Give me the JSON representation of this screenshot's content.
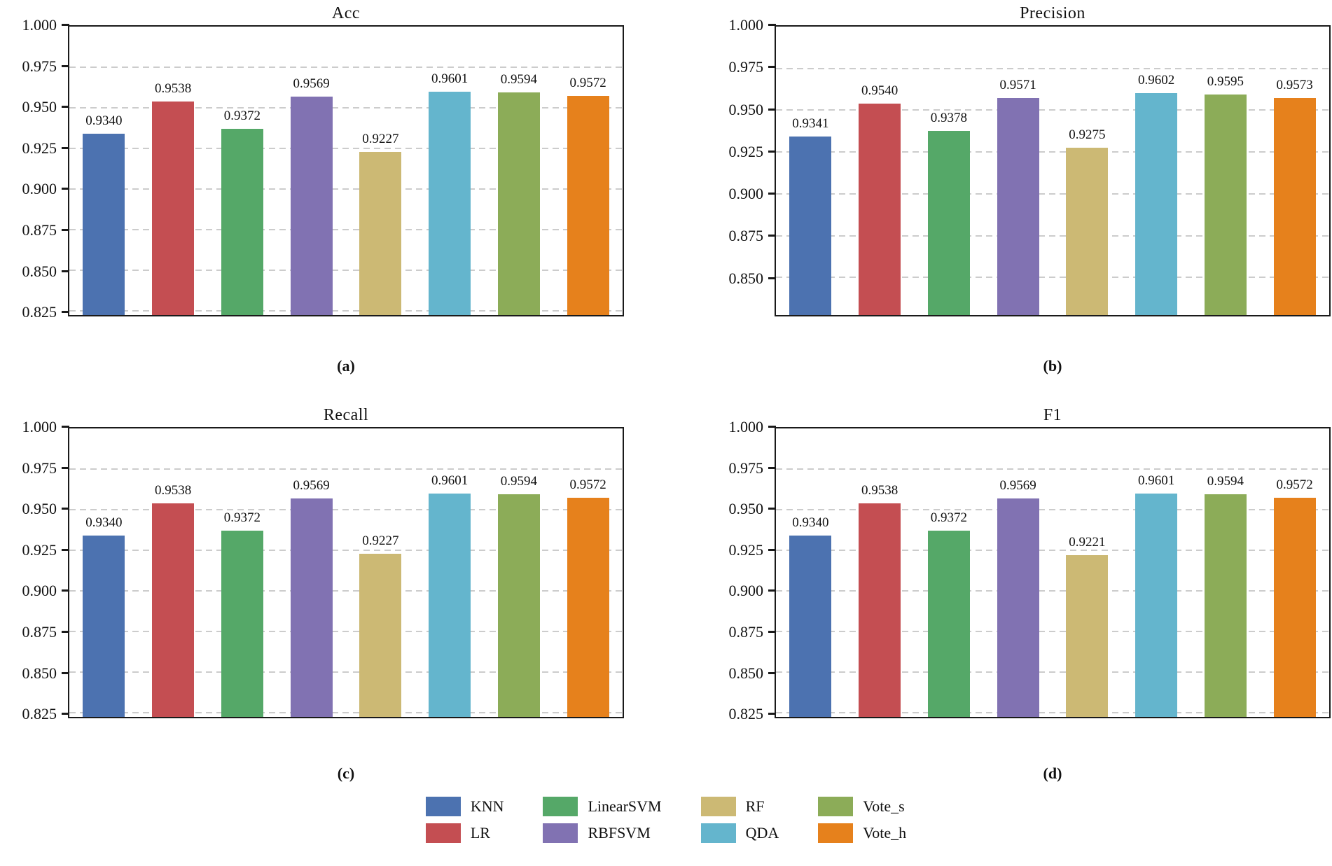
{
  "figure": {
    "background": "#ffffff",
    "spine_color": "#1a1a1a",
    "grid_color": "#cccccc",
    "text_color": "#111111"
  },
  "legend": {
    "position": "figure-bottom-center",
    "items": [
      {
        "label": "KNN",
        "color": "#4C72B0"
      },
      {
        "label": "LR",
        "color": "#C44E52"
      },
      {
        "label": "LinearSVM",
        "color": "#55A868"
      },
      {
        "label": "RBFSVM",
        "color": "#8172B2"
      },
      {
        "label": "RF",
        "color": "#CCB974"
      },
      {
        "label": "QDA",
        "color": "#64B5CD"
      },
      {
        "label": "Vote_s",
        "color": "#8CAC58"
      },
      {
        "label": "Vote_h",
        "color": "#E6811C"
      }
    ]
  },
  "chart_data": [
    {
      "type": "bar",
      "title": "Acc",
      "caption": "(a)",
      "categories": [
        "KNN",
        "LR",
        "LinearSVM",
        "RBFSVM",
        "RF",
        "QDA",
        "Vote_s",
        "Vote_h"
      ],
      "values": [
        0.934,
        0.9538,
        0.9372,
        0.9569,
        0.9227,
        0.9601,
        0.9594,
        0.9572
      ],
      "value_labels": [
        "0.9340",
        "0.9538",
        "0.9372",
        "0.9569",
        "0.9227",
        "0.9601",
        "0.9594",
        "0.9572"
      ],
      "ylim": [
        0.8225,
        1.0
      ],
      "yticks": [
        "0.825",
        "0.850",
        "0.875",
        "0.900",
        "0.925",
        "0.950",
        "0.975",
        "1.000"
      ],
      "grid": "horizontal-dashed",
      "xlabel": "",
      "ylabel": ""
    },
    {
      "type": "bar",
      "title": "Precision",
      "caption": "(b)",
      "categories": [
        "KNN",
        "LR",
        "LinearSVM",
        "RBFSVM",
        "RF",
        "QDA",
        "Vote_s",
        "Vote_h"
      ],
      "values": [
        0.9341,
        0.954,
        0.9378,
        0.9571,
        0.9275,
        0.9602,
        0.9595,
        0.9573
      ],
      "value_labels": [
        "0.9341",
        "0.9540",
        "0.9378",
        "0.9571",
        "0.9275",
        "0.9602",
        "0.9595",
        "0.9573"
      ],
      "ylim": [
        0.8275,
        1.0
      ],
      "yticks": [
        "0.850",
        "0.875",
        "0.900",
        "0.925",
        "0.950",
        "0.975",
        "1.000"
      ],
      "grid": "horizontal-dashed",
      "xlabel": "",
      "ylabel": ""
    },
    {
      "type": "bar",
      "title": "Recall",
      "caption": "(c)",
      "categories": [
        "KNN",
        "LR",
        "LinearSVM",
        "RBFSVM",
        "RF",
        "QDA",
        "Vote_s",
        "Vote_h"
      ],
      "values": [
        0.934,
        0.9538,
        0.9372,
        0.9569,
        0.9227,
        0.9601,
        0.9594,
        0.9572
      ],
      "value_labels": [
        "0.9340",
        "0.9538",
        "0.9372",
        "0.9569",
        "0.9227",
        "0.9601",
        "0.9594",
        "0.9572"
      ],
      "ylim": [
        0.8225,
        1.0
      ],
      "yticks": [
        "0.825",
        "0.850",
        "0.875",
        "0.900",
        "0.925",
        "0.950",
        "0.975",
        "1.000"
      ],
      "grid": "horizontal-dashed",
      "xlabel": "",
      "ylabel": ""
    },
    {
      "type": "bar",
      "title": "F1",
      "caption": "(d)",
      "categories": [
        "KNN",
        "LR",
        "LinearSVM",
        "RBFSVM",
        "RF",
        "QDA",
        "Vote_s",
        "Vote_h"
      ],
      "values": [
        0.934,
        0.9538,
        0.9372,
        0.9569,
        0.9221,
        0.9601,
        0.9594,
        0.9572
      ],
      "value_labels": [
        "0.9340",
        "0.9538",
        "0.9372",
        "0.9569",
        "0.9221",
        "0.9601",
        "0.9594",
        "0.9572"
      ],
      "ylim": [
        0.8225,
        1.0
      ],
      "yticks": [
        "0.825",
        "0.850",
        "0.875",
        "0.900",
        "0.925",
        "0.950",
        "0.975",
        "1.000"
      ],
      "grid": "horizontal-dashed",
      "xlabel": "",
      "ylabel": ""
    }
  ]
}
